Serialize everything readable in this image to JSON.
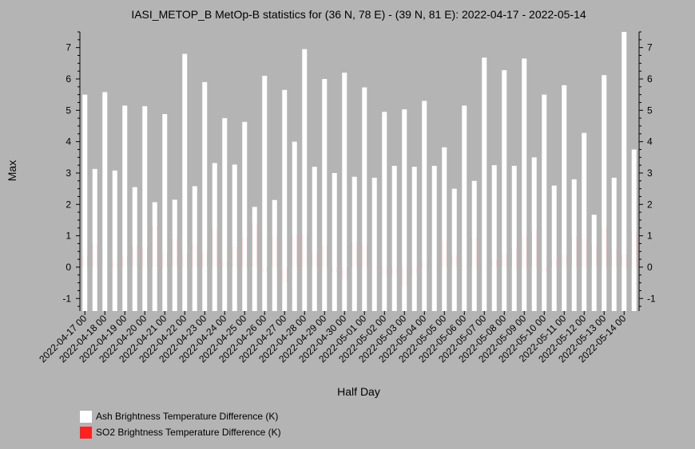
{
  "chart_data": {
    "type": "bar",
    "title": "IASI_METOP_B MetOp-B statistics for (36 N, 78 E) - (39 N, 81 E): 2022-04-17 - 2022-05-14",
    "xlabel": "Half Day",
    "ylabel": "Max",
    "ylim": [
      -1.4,
      7.5
    ],
    "yticks": [
      -1,
      0,
      1,
      2,
      3,
      4,
      5,
      6,
      7
    ],
    "grid": false,
    "legend_position": "bottom-left",
    "date_labels": [
      "2022-04-17 00",
      "2022-04-18 00",
      "2022-04-19 00",
      "2022-04-20 00",
      "2022-04-21 00",
      "2022-04-22 00",
      "2022-04-23 00",
      "2022-04-24 00",
      "2022-04-25 00",
      "2022-04-26 00",
      "2022-04-27 00",
      "2022-04-28 00",
      "2022-04-29 00",
      "2022-04-30 00",
      "2022-05-01 00",
      "2022-05-02 00",
      "2022-05-03 00",
      "2022-05-04 00",
      "2022-05-05 00",
      "2022-05-06 00",
      "2022-05-07 00",
      "2022-05-08 00",
      "2022-05-09 00",
      "2022-05-10 00",
      "2022-05-11 00",
      "2022-05-12 00",
      "2022-05-13 00",
      "2022-05-14 00"
    ],
    "series": [
      {
        "name": "Ash Brightness Temperature Difference (K)",
        "color": "#ffffff",
        "values": [
          5.5,
          3.13,
          5.58,
          3.08,
          5.15,
          2.55,
          5.13,
          2.07,
          4.88,
          2.15,
          6.8,
          2.58,
          5.9,
          3.32,
          4.75,
          3.27,
          4.63,
          1.92,
          6.1,
          2.14,
          5.65,
          4.0,
          6.95,
          3.2,
          6.0,
          3.0,
          6.2,
          2.88,
          5.73,
          2.85,
          4.95,
          3.23,
          5.03,
          3.2,
          5.3,
          3.23,
          3.82,
          2.5,
          5.15,
          2.75,
          6.68,
          3.25,
          6.28,
          3.23,
          6.65,
          3.5,
          5.5,
          2.6,
          5.8,
          2.8,
          4.28,
          1.67,
          6.12,
          2.85,
          7.5,
          3.75
        ]
      },
      {
        "name": "SO2 Brightness Temperature Difference (K)",
        "color": "#ff2020",
        "values": [
          0.35,
          0.72,
          0.0,
          0.13,
          0.35,
          0.67,
          0.65,
          1.3,
          0.5,
          0.9,
          0.43,
          0.75,
          0.5,
          1.25,
          0.17,
          0.65,
          0.95,
          1.4,
          -0.15,
          1.0,
          -0.5,
          1.05,
          1.05,
          0.48,
          0.7,
          -0.17,
          -0.38,
          0.78,
          0.73,
          -0.05,
          -0.25,
          -0.27,
          -0.6,
          -0.22,
          0.13,
          0.0,
          0.85,
          0.4,
          0.03,
          0.95,
          0.0,
          0.23,
          0.43,
          0.6,
          1.0,
          1.15,
          -0.15,
          0.25,
          0.4,
          1.0,
          0.92,
          0.7,
          1.25,
          0.58,
          0.4,
          1.15
        ]
      }
    ]
  }
}
